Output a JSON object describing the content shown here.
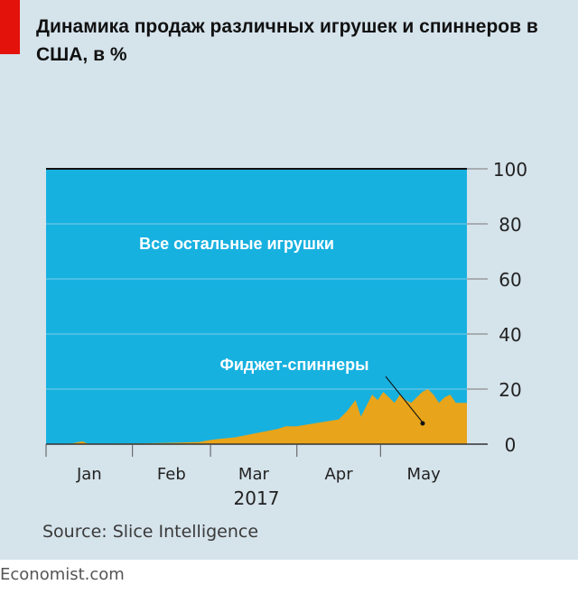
{
  "chart_data": {
    "type": "area",
    "title": "Динамика продаж различных игрушек и спиннеров в США, в %",
    "x_axis": {
      "tick_labels": [
        "Jan",
        "Feb",
        "Mar",
        "Apr",
        "May"
      ],
      "year_label": "2017",
      "range": [
        "2017-01-01",
        "2017-05-31"
      ]
    },
    "y_axis": {
      "ticks": [
        "100",
        "80",
        "60",
        "40",
        "20",
        "0"
      ],
      "ylim": [
        0,
        100
      ],
      "grid": true,
      "position": "right"
    },
    "series": [
      {
        "name": "Фиджет-спиннеры",
        "color": "#e8a41a",
        "dates": [
          "2017-01-01",
          "2017-01-10",
          "2017-01-14",
          "2017-01-16",
          "2017-01-25",
          "2017-02-05",
          "2017-02-15",
          "2017-02-25",
          "2017-03-01",
          "2017-03-05",
          "2017-03-10",
          "2017-03-15",
          "2017-03-20",
          "2017-03-25",
          "2017-03-28",
          "2017-04-01",
          "2017-04-04",
          "2017-04-07",
          "2017-04-10",
          "2017-04-13",
          "2017-04-16",
          "2017-04-19",
          "2017-04-22",
          "2017-04-24",
          "2017-04-26",
          "2017-04-28",
          "2017-04-30",
          "2017-05-02",
          "2017-05-04",
          "2017-05-06",
          "2017-05-08",
          "2017-05-10",
          "2017-05-12",
          "2017-05-14",
          "2017-05-16",
          "2017-05-18",
          "2017-05-20",
          "2017-05-22",
          "2017-05-24",
          "2017-05-26",
          "2017-05-28"
        ],
        "values": [
          0,
          0.2,
          1,
          0.2,
          0.2,
          0.3,
          0.5,
          0.8,
          1.5,
          2,
          2.5,
          3.5,
          4.5,
          5.5,
          6.5,
          6.5,
          7,
          7.5,
          8,
          8.5,
          9,
          12,
          16,
          10,
          14,
          18,
          16,
          19,
          17,
          15,
          18,
          16,
          15,
          17,
          19,
          20,
          18,
          15,
          17,
          18,
          15
        ]
      },
      {
        "name": "Все остальные игрушки",
        "color": "#17b1e0"
      }
    ],
    "annotations": [
      "Все остальные игрушки",
      "Фиджет-спиннеры"
    ]
  },
  "source": "Source: Slice Intelligence",
  "footer": "Economist.com",
  "colors": {
    "background": "#d5e3eb",
    "accent_bar": "#e3120b"
  }
}
